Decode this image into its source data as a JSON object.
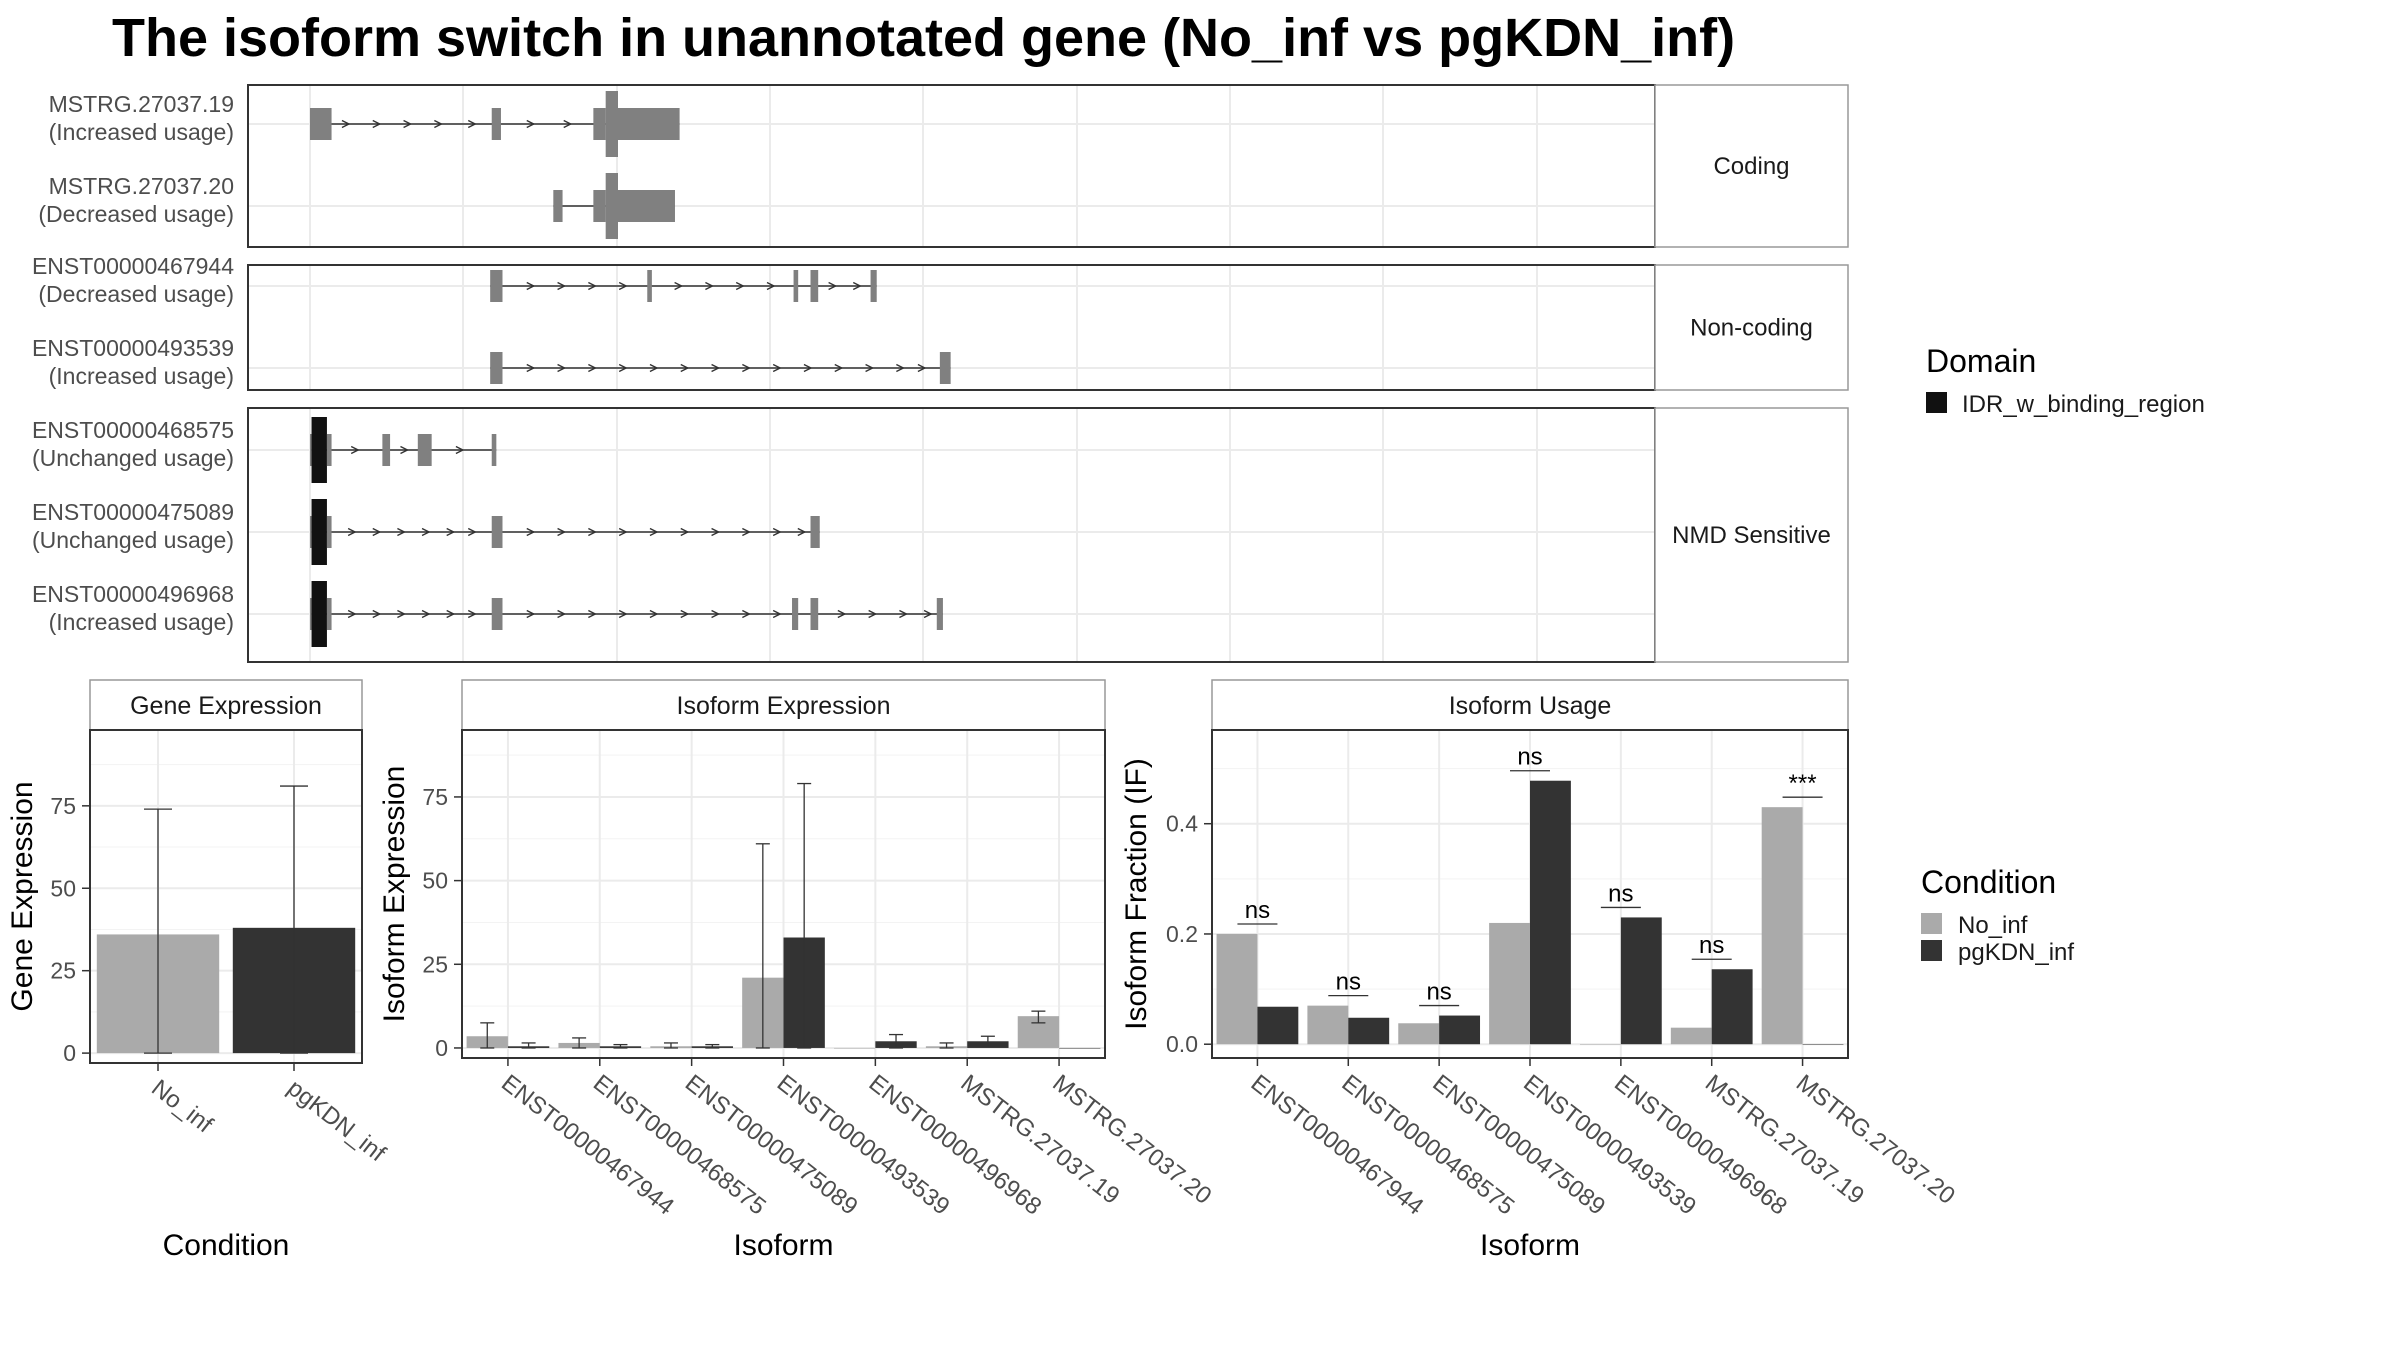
{
  "title": "The isoform switch in unannotated gene (No_inf vs pgKDN_inf)",
  "colors": {
    "exon": "#808080",
    "domain": "#111111",
    "no_inf": "#aaaaaa",
    "pgkdn_inf": "#333333",
    "panel_border": "#333333",
    "strip_border": "#999999",
    "grid": "#ebebeb"
  },
  "structure": {
    "groups": [
      {
        "label": "Coding",
        "rows": [
          {
            "id": "MSTRG.27037.19",
            "usage": "(Increased usage)",
            "exons": [
              [
                0.0,
                0.07,
                "utr"
              ],
              [
                0.59,
                0.62,
                "utr"
              ],
              [
                0.92,
                0.96,
                "utr"
              ],
              [
                0.96,
                1.0,
                "cds"
              ],
              [
                1.0,
                1.2,
                "cds"
              ]
            ],
            "arrows": [
              0.12,
              0.22,
              0.32,
              0.42,
              0.53,
              0.72,
              0.84
            ]
          },
          {
            "id": "MSTRG.27037.20",
            "usage": "(Decreased usage)",
            "exons": [
              [
                0.79,
                0.82,
                "utr"
              ],
              [
                0.92,
                0.96,
                "utr"
              ],
              [
                0.96,
                1.0,
                "cds"
              ],
              [
                1.0,
                1.185,
                "cds"
              ]
            ],
            "arrows": []
          }
        ]
      },
      {
        "label": "Non-coding",
        "rows": [
          {
            "id": "ENST00000467944",
            "usage": "(Decreased usage)",
            "exons": [
              [
                0.585,
                0.625,
                "utr"
              ],
              [
                1.095,
                1.11,
                "utr"
              ],
              [
                1.57,
                1.585,
                "utr"
              ],
              [
                1.625,
                1.65,
                "utr"
              ],
              [
                1.82,
                1.84,
                "utr"
              ]
            ],
            "arrows": [
              0.72,
              0.82,
              0.92,
              1.02,
              1.2,
              1.3,
              1.4,
              1.5,
              1.7,
              1.78
            ]
          },
          {
            "id": "ENST00000493539",
            "usage": "(Increased usage)",
            "exons": [
              [
                0.585,
                0.625,
                "utr"
              ],
              [
                2.045,
                2.08,
                "utr"
              ]
            ],
            "arrows": [
              0.72,
              0.82,
              0.92,
              1.02,
              1.12,
              1.22,
              1.32,
              1.42,
              1.52,
              1.62,
              1.72,
              1.82,
              1.92,
              1.99
            ]
          }
        ]
      },
      {
        "label": "NMD Sensitive",
        "rows": [
          {
            "id": "ENST00000468575",
            "usage": "(Unchanged usage)",
            "exons": [
              [
                0.0,
                0.005,
                "utr"
              ],
              [
                0.005,
                0.055,
                "domain"
              ],
              [
                0.055,
                0.07,
                "utr"
              ],
              [
                0.235,
                0.26,
                "utr"
              ],
              [
                0.35,
                0.395,
                "utr"
              ],
              [
                0.59,
                0.605,
                "utr"
              ]
            ],
            "arrows": [
              0.15,
              0.31,
              0.49
            ]
          },
          {
            "id": "ENST00000475089",
            "usage": "(Unchanged usage)",
            "exons": [
              [
                0.0,
                0.005,
                "utr"
              ],
              [
                0.005,
                0.055,
                "domain"
              ],
              [
                0.055,
                0.07,
                "utr"
              ],
              [
                0.59,
                0.625,
                "utr"
              ],
              [
                1.625,
                1.655,
                "utr"
              ]
            ],
            "arrows": [
              0.14,
              0.22,
              0.3,
              0.38,
              0.46,
              0.53,
              0.72,
              0.82,
              0.92,
              1.02,
              1.12,
              1.22,
              1.32,
              1.42,
              1.52,
              1.6
            ]
          },
          {
            "id": "ENST00000496968",
            "usage": "(Increased usage)",
            "exons": [
              [
                0.0,
                0.005,
                "utr"
              ],
              [
                0.005,
                0.055,
                "domain"
              ],
              [
                0.055,
                0.07,
                "utr"
              ],
              [
                0.59,
                0.625,
                "utr"
              ],
              [
                1.565,
                1.585,
                "utr"
              ],
              [
                1.625,
                1.65,
                "utr"
              ],
              [
                2.035,
                2.055,
                "utr"
              ]
            ],
            "arrows": [
              0.14,
              0.22,
              0.3,
              0.38,
              0.46,
              0.53,
              0.72,
              0.82,
              0.92,
              1.02,
              1.12,
              1.22,
              1.32,
              1.42,
              1.52,
              1.73,
              1.83,
              1.93,
              2.01
            ]
          }
        ]
      }
    ]
  },
  "legends": {
    "domain": {
      "title": "Domain",
      "items": [
        "IDR_w_binding_region"
      ]
    },
    "condition": {
      "title": "Condition",
      "items": [
        "No_inf",
        "pgKDN_inf"
      ]
    }
  },
  "chart_data": [
    {
      "type": "bar",
      "title": "Gene Expression",
      "xlabel": "Condition",
      "ylabel": "Gene Expression",
      "categories": [
        "No_inf",
        "pgKDN_inf"
      ],
      "values": [
        36,
        38
      ],
      "error_low": [
        0,
        0
      ],
      "error_high": [
        74,
        81
      ],
      "ylim": [
        -3,
        98
      ],
      "yticks": [
        0,
        25,
        50,
        75
      ]
    },
    {
      "type": "bar",
      "title": "Isoform Expression",
      "xlabel": "Isoform",
      "ylabel": "Isoform Expression",
      "categories": [
        "ENST00000467944",
        "ENST00000468575",
        "ENST00000475089",
        "ENST00000493539",
        "ENST00000496968",
        "MSTRG.27037.19",
        "MSTRG.27037.20"
      ],
      "series": [
        {
          "name": "No_inf",
          "values": [
            3.5,
            1.5,
            0.5,
            21,
            0,
            0.5,
            9.5
          ],
          "error_low": [
            0,
            0,
            0,
            0,
            0,
            0,
            7.5
          ],
          "error_high": [
            7.5,
            3,
            1.5,
            61,
            0,
            1.5,
            11
          ]
        },
        {
          "name": "pgKDN_inf",
          "values": [
            0.5,
            0.5,
            0.5,
            33,
            2,
            2,
            0
          ],
          "error_low": [
            0,
            0,
            0,
            0,
            0,
            0.5,
            0
          ],
          "error_high": [
            1.5,
            1,
            1,
            79,
            4,
            3.5,
            0
          ]
        }
      ],
      "ylim": [
        -3,
        95
      ],
      "yticks": [
        0,
        25,
        50,
        75
      ]
    },
    {
      "type": "bar",
      "title": "Isoform Usage",
      "xlabel": "Isoform",
      "ylabel": "Isoform Fraction (IF)",
      "categories": [
        "ENST00000467944",
        "ENST00000468575",
        "ENST00000475089",
        "ENST00000493539",
        "ENST00000496968",
        "MSTRG.27037.19",
        "MSTRG.27037.20"
      ],
      "series": [
        {
          "name": "No_inf",
          "values": [
            0.2,
            0.07,
            0.038,
            0.22,
            0,
            0.03,
            0.43
          ]
        },
        {
          "name": "pgKDN_inf",
          "values": [
            0.068,
            0.048,
            0.052,
            0.478,
            0.23,
            0.136,
            0
          ]
        }
      ],
      "significance": [
        "ns",
        "ns",
        "ns",
        "ns",
        "ns",
        "ns",
        "***"
      ],
      "ylim": [
        -0.025,
        0.57
      ],
      "yticks": [
        0.0,
        0.2,
        0.4
      ]
    }
  ]
}
